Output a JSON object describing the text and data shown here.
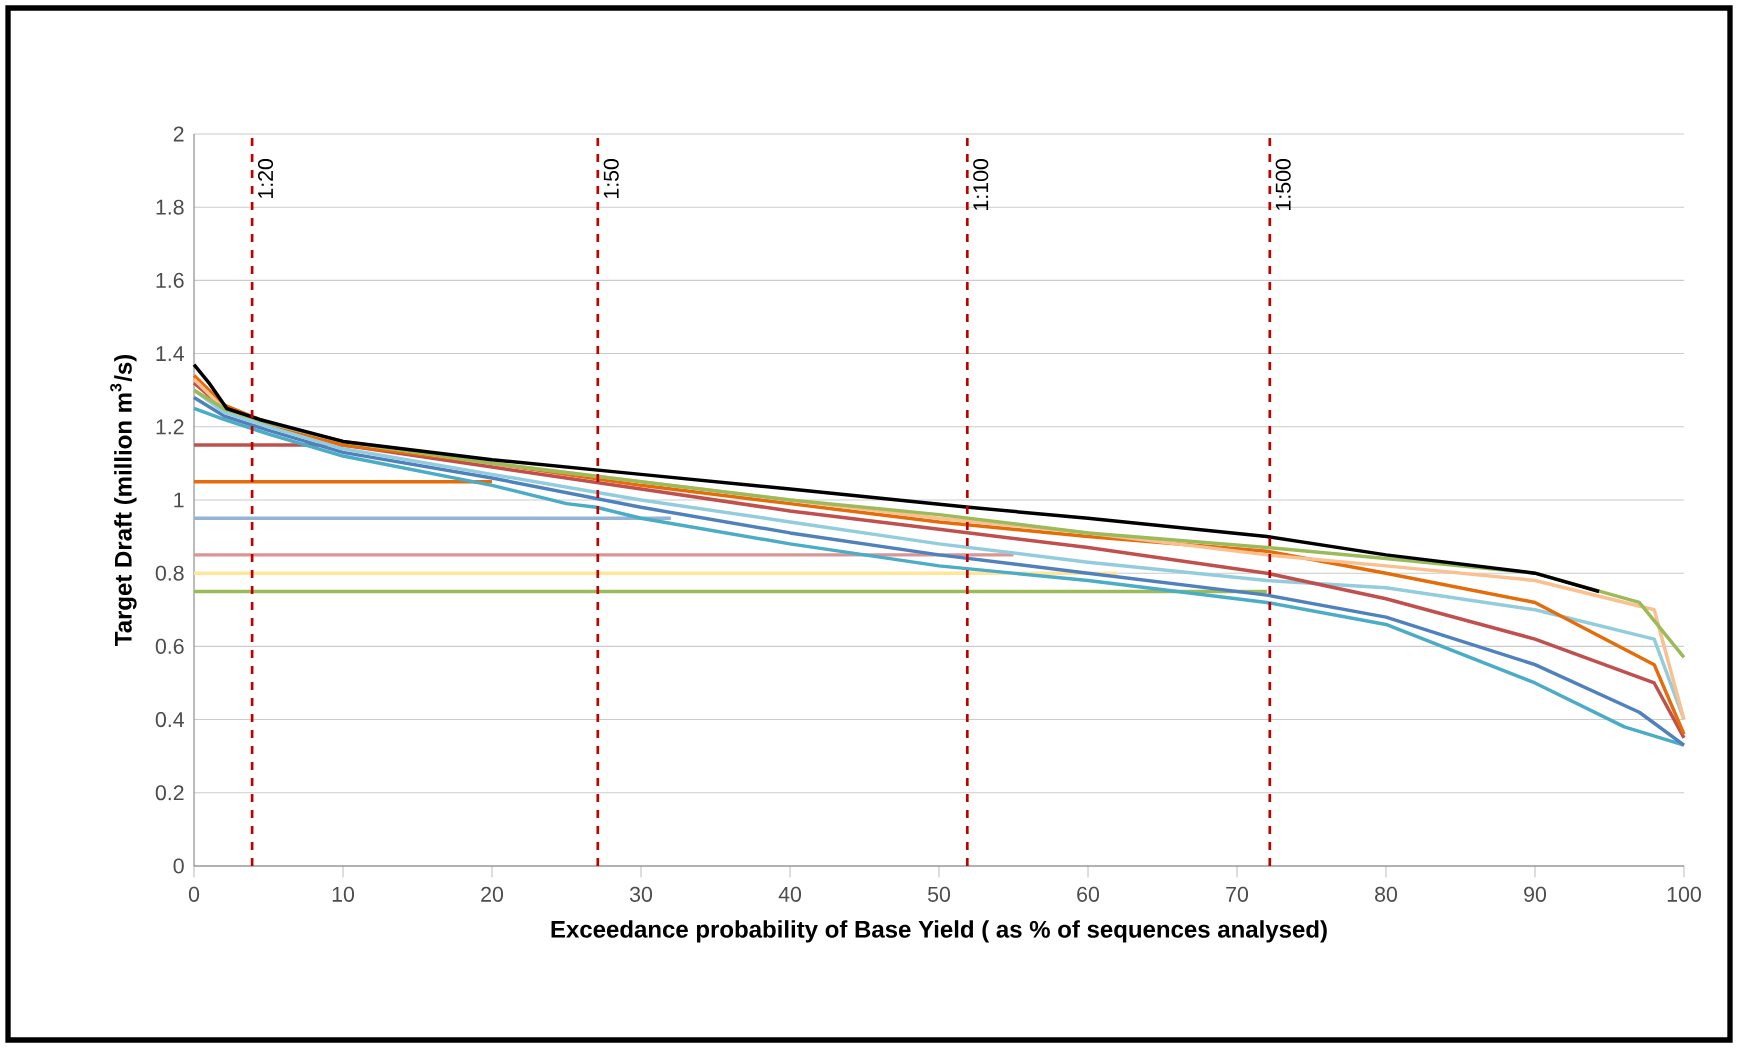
{
  "chart_data": {
    "type": "line",
    "xlabel": "Exceedance probability of Base Yield ( as % of sequences analysed)",
    "ylabel": "Target Draft (million m$^{3}$/s)",
    "xlim": [
      0,
      100
    ],
    "ylim": [
      0,
      2
    ],
    "xticks": [
      0,
      10,
      20,
      30,
      40,
      50,
      60,
      70,
      80,
      90,
      100
    ],
    "yticks": [
      0,
      0.2,
      0.4,
      0.6,
      0.8,
      1,
      1.2,
      1.4,
      1.6,
      1.8,
      2
    ],
    "grid": "y",
    "marker": "none",
    "line_style": "solid",
    "series": [
      {
        "color": "#c0504d",
        "x": [
          0,
          9
        ],
        "values": [
          1.15,
          1.15
        ]
      },
      {
        "color": "#e46c0a",
        "x": [
          0,
          20
        ],
        "values": [
          1.05,
          1.05
        ]
      },
      {
        "color": "#95b3d7",
        "x": [
          0,
          32
        ],
        "values": [
          0.95,
          0.95
        ]
      },
      {
        "color": "#d99694",
        "x": [
          0,
          55
        ],
        "values": [
          0.85,
          0.85
        ]
      },
      {
        "color": "#ffe699",
        "x": [
          0,
          62
        ],
        "values": [
          0.8,
          0.8
        ]
      },
      {
        "color": "#9bbb59",
        "x": [
          0,
          72
        ],
        "values": [
          0.75,
          0.75
        ]
      },
      {
        "color": "#4bacc6",
        "x": [
          0,
          2,
          5,
          10,
          20,
          25,
          27,
          30,
          40,
          50,
          60,
          72,
          80,
          90,
          96,
          100
        ],
        "values": [
          1.25,
          1.22,
          1.18,
          1.12,
          1.04,
          0.99,
          0.98,
          0.95,
          0.88,
          0.82,
          0.78,
          0.72,
          0.66,
          0.5,
          0.38,
          0.33
        ]
      },
      {
        "color": "#4f81bd",
        "x": [
          0,
          2,
          5,
          10,
          20,
          30,
          40,
          50,
          60,
          72,
          80,
          90,
          97,
          100
        ],
        "values": [
          1.28,
          1.23,
          1.19,
          1.13,
          1.06,
          0.98,
          0.91,
          0.85,
          0.8,
          0.74,
          0.68,
          0.55,
          0.42,
          0.33
        ]
      },
      {
        "color": "#93cddd",
        "x": [
          0,
          2,
          5,
          10,
          20,
          30,
          40,
          50,
          60,
          72,
          80,
          90,
          98,
          100
        ],
        "values": [
          1.3,
          1.24,
          1.2,
          1.14,
          1.07,
          1.0,
          0.94,
          0.88,
          0.83,
          0.78,
          0.76,
          0.7,
          0.62,
          0.4
        ]
      },
      {
        "color": "#c0504d",
        "x": [
          0,
          2,
          5,
          10,
          20,
          30,
          40,
          50,
          60,
          72,
          80,
          90,
          98,
          100
        ],
        "values": [
          1.32,
          1.25,
          1.21,
          1.15,
          1.09,
          1.03,
          0.97,
          0.92,
          0.87,
          0.8,
          0.73,
          0.62,
          0.5,
          0.35
        ]
      },
      {
        "color": "#e46c0a",
        "x": [
          0,
          2,
          5,
          10,
          20,
          30,
          40,
          50,
          60,
          72,
          80,
          90,
          98,
          100
        ],
        "values": [
          1.34,
          1.26,
          1.21,
          1.15,
          1.1,
          1.04,
          0.99,
          0.94,
          0.9,
          0.86,
          0.8,
          0.72,
          0.55,
          0.36
        ]
      },
      {
        "color": "#fac090",
        "x": [
          0,
          2,
          5,
          10,
          20,
          30,
          40,
          50,
          60,
          72,
          80,
          90,
          98,
          100
        ],
        "values": [
          1.33,
          1.25,
          1.21,
          1.16,
          1.1,
          1.05,
          1.0,
          0.95,
          0.91,
          0.85,
          0.82,
          0.78,
          0.7,
          0.4
        ]
      },
      {
        "color": "#9bbb59",
        "x": [
          0,
          2,
          5,
          10,
          20,
          30,
          40,
          50,
          60,
          72,
          80,
          90,
          97,
          100
        ],
        "values": [
          1.3,
          1.25,
          1.21,
          1.16,
          1.1,
          1.05,
          1.0,
          0.96,
          0.91,
          0.87,
          0.84,
          0.8,
          0.72,
          0.57
        ]
      },
      {
        "color": "#000000",
        "x": [
          0,
          1,
          2.2,
          4.4,
          10,
          20,
          30,
          40,
          52,
          60,
          72,
          80,
          90,
          94.3
        ],
        "values": [
          1.37,
          1.32,
          1.25,
          1.22,
          1.16,
          1.11,
          1.07,
          1.03,
          0.98,
          0.95,
          0.9,
          0.85,
          0.8,
          0.75
        ]
      }
    ],
    "ref_lines": [
      {
        "axis": "x",
        "value": 3.9,
        "color": "#c00000",
        "line_style": "dashed"
      },
      {
        "axis": "x",
        "value": 27.1,
        "color": "#c00000",
        "line_style": "dashed"
      },
      {
        "axis": "x",
        "value": 51.9,
        "color": "#c00000",
        "line_style": "dashed"
      },
      {
        "axis": "x",
        "value": 72.2,
        "color": "#c00000",
        "line_style": "dashed"
      }
    ],
    "annotations": [
      {
        "text": "1:20",
        "x": 3.9,
        "y": 1.95
      },
      {
        "text": "1:50",
        "x": 27.1,
        "y": 1.95
      },
      {
        "text": "1:100",
        "x": 51.9,
        "y": 1.95
      },
      {
        "text": "1:500",
        "x": 72.2,
        "y": 1.95
      }
    ]
  }
}
